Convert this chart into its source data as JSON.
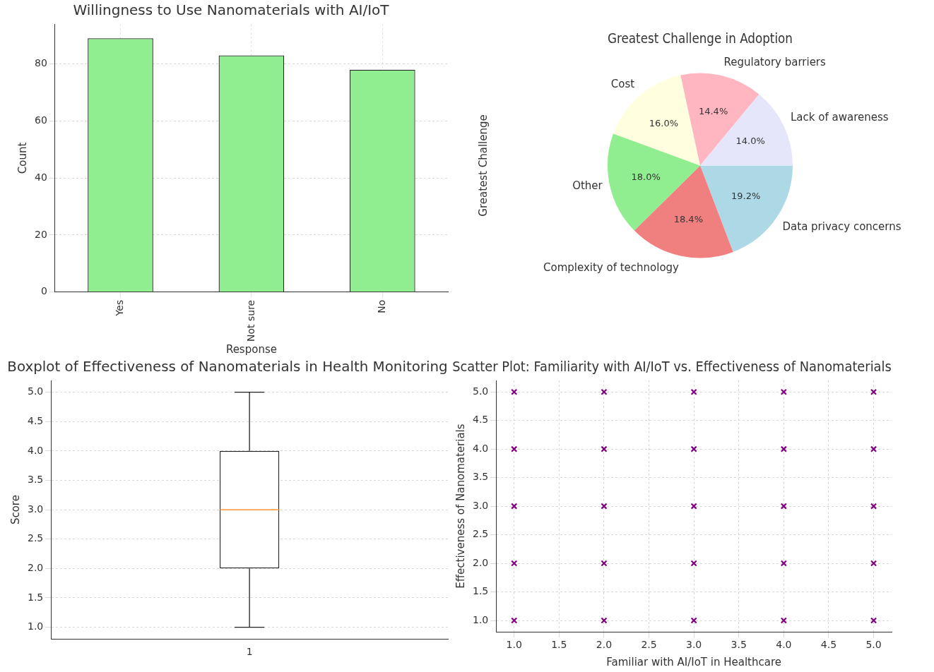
{
  "chart_data": [
    {
      "type": "bar",
      "title": "Willingness to Use Nanomaterials with AI/IoT",
      "xlabel": "Response",
      "ylabel": "Count",
      "categories": [
        "Yes",
        "Not sure",
        "No"
      ],
      "values": [
        89,
        83,
        78
      ],
      "color": "#90ee90",
      "ylim": [
        0,
        94
      ],
      "yticks": [
        0,
        20,
        40,
        60,
        80
      ],
      "grid": true
    },
    {
      "type": "pie",
      "title": "Greatest Challenge in Adoption",
      "ylabel": "Greatest Challenge",
      "categories": [
        "Data privacy concerns",
        "Complexity of technology",
        "Other",
        "Cost",
        "Regulatory barriers",
        "Lack of awareness"
      ],
      "values": [
        19.2,
        18.4,
        18.0,
        16.0,
        14.4,
        14.0
      ],
      "colors": [
        "#add8e6",
        "#f08080",
        "#90ee90",
        "#ffffe0",
        "#ffb6c1",
        "#e6e6fa"
      ],
      "value_labels": [
        "19.2%",
        "18.4%",
        "18.0%",
        "16.0%",
        "14.4%",
        "14.0%"
      ]
    },
    {
      "type": "box",
      "title": "Boxplot of Effectiveness of Nanomaterials in Health Monitoring",
      "ylabel": "Score",
      "categories": [
        "1"
      ],
      "boxes": [
        {
          "low": 1,
          "q1": 2,
          "median": 3,
          "q3": 4,
          "high": 5
        }
      ],
      "ylim": [
        0.8,
        5.2
      ],
      "yticks": [
        {
          "value": 1,
          "label": "1.0"
        },
        {
          "value": 1.5,
          "label": "1.5"
        },
        {
          "value": 2,
          "label": "2.0"
        },
        {
          "value": 2.5,
          "label": "2.5"
        },
        {
          "value": 3,
          "label": "3.0"
        },
        {
          "value": 3.5,
          "label": "3.5"
        },
        {
          "value": 4,
          "label": "4.0"
        },
        {
          "value": 4.5,
          "label": "4.5"
        },
        {
          "value": 5,
          "label": "5.0"
        }
      ],
      "grid": "y"
    },
    {
      "type": "scatter",
      "title": "Scatter Plot: Familiarity with AI/IoT vs. Effectiveness of Nanomaterials",
      "xlabel": "Familiar with AI/IoT in Healthcare",
      "ylabel": "Effectiveness of Nanomaterials",
      "x": [
        1,
        1,
        1,
        1,
        1,
        2,
        2,
        2,
        2,
        2,
        3,
        3,
        3,
        3,
        3,
        4,
        4,
        4,
        4,
        4,
        5,
        5,
        5,
        5,
        5
      ],
      "values": [
        1,
        2,
        3,
        4,
        5,
        1,
        2,
        3,
        4,
        5,
        1,
        2,
        3,
        4,
        5,
        1,
        2,
        3,
        4,
        5,
        1,
        2,
        3,
        4,
        5
      ],
      "color": "#800080",
      "marker": "cross",
      "xlim": [
        0.8,
        5.2
      ],
      "xticks": [
        {
          "value": 1,
          "label": "1.0"
        },
        {
          "value": 1.5,
          "label": "1.5"
        },
        {
          "value": 2,
          "label": "2.0"
        },
        {
          "value": 2.5,
          "label": "2.5"
        },
        {
          "value": 3,
          "label": "3.0"
        },
        {
          "value": 3.5,
          "label": "3.5"
        },
        {
          "value": 4,
          "label": "4.0"
        },
        {
          "value": 4.5,
          "label": "4.5"
        },
        {
          "value": 5,
          "label": "5.0"
        }
      ],
      "ylim": [
        0.8,
        5.2
      ],
      "yticks": [
        {
          "value": 1,
          "label": "1.0"
        },
        {
          "value": 1.5,
          "label": "1.5"
        },
        {
          "value": 2,
          "label": "2.0"
        },
        {
          "value": 2.5,
          "label": "2.5"
        },
        {
          "value": 3,
          "label": "3.0"
        },
        {
          "value": 3.5,
          "label": "3.5"
        },
        {
          "value": 4,
          "label": "4.0"
        },
        {
          "value": 4.5,
          "label": "4.5"
        },
        {
          "value": 5,
          "label": "5.0"
        }
      ],
      "grid": true
    }
  ]
}
